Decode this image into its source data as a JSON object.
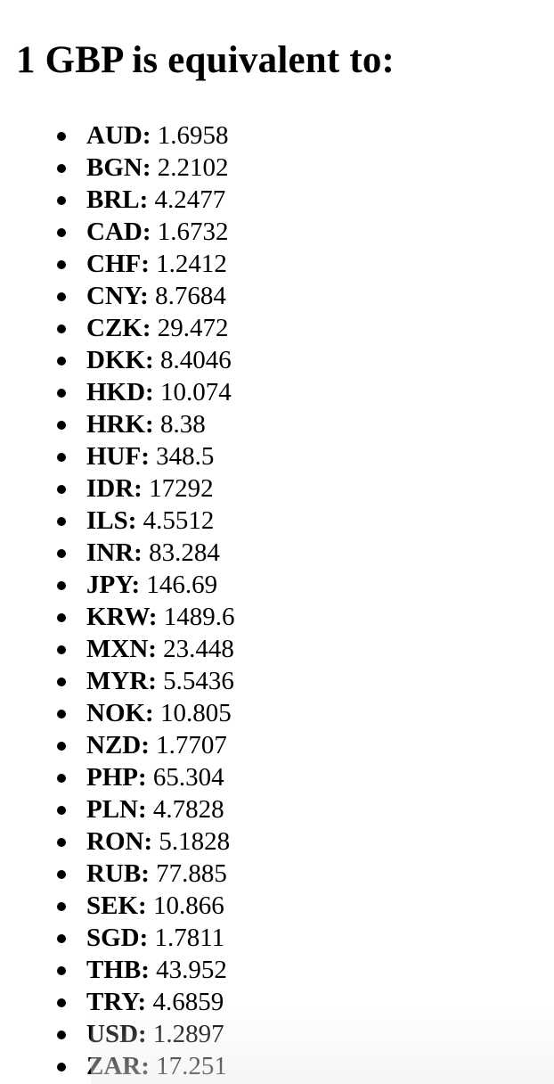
{
  "heading": "1 GBP is equivalent to:",
  "rates": [
    {
      "code": "AUD:",
      "value": "1.6958"
    },
    {
      "code": "BGN:",
      "value": "2.2102"
    },
    {
      "code": "BRL:",
      "value": "4.2477"
    },
    {
      "code": "CAD:",
      "value": "1.6732"
    },
    {
      "code": "CHF:",
      "value": "1.2412"
    },
    {
      "code": "CNY:",
      "value": "8.7684"
    },
    {
      "code": "CZK:",
      "value": "29.472"
    },
    {
      "code": "DKK:",
      "value": "8.4046"
    },
    {
      "code": "HKD:",
      "value": "10.074"
    },
    {
      "code": "HRK:",
      "value": "8.38"
    },
    {
      "code": "HUF:",
      "value": "348.5"
    },
    {
      "code": "IDR:",
      "value": "17292"
    },
    {
      "code": "ILS:",
      "value": "4.5512"
    },
    {
      "code": "INR:",
      "value": "83.284"
    },
    {
      "code": "JPY:",
      "value": "146.69"
    },
    {
      "code": "KRW:",
      "value": "1489.6"
    },
    {
      "code": "MXN:",
      "value": "23.448"
    },
    {
      "code": "MYR:",
      "value": "5.5436"
    },
    {
      "code": "NOK:",
      "value": "10.805"
    },
    {
      "code": "NZD:",
      "value": "1.7707"
    },
    {
      "code": "PHP:",
      "value": "65.304"
    },
    {
      "code": "PLN:",
      "value": "4.7828"
    },
    {
      "code": "RON:",
      "value": "5.1828"
    },
    {
      "code": "RUB:",
      "value": "77.885"
    },
    {
      "code": "SEK:",
      "value": "10.866"
    },
    {
      "code": "SGD:",
      "value": "1.7811"
    },
    {
      "code": "THB:",
      "value": "43.952"
    },
    {
      "code": "TRY:",
      "value": "4.6859"
    },
    {
      "code": "USD:",
      "value": "1.2897"
    },
    {
      "code": "ZAR:",
      "value": "17.251"
    }
  ]
}
